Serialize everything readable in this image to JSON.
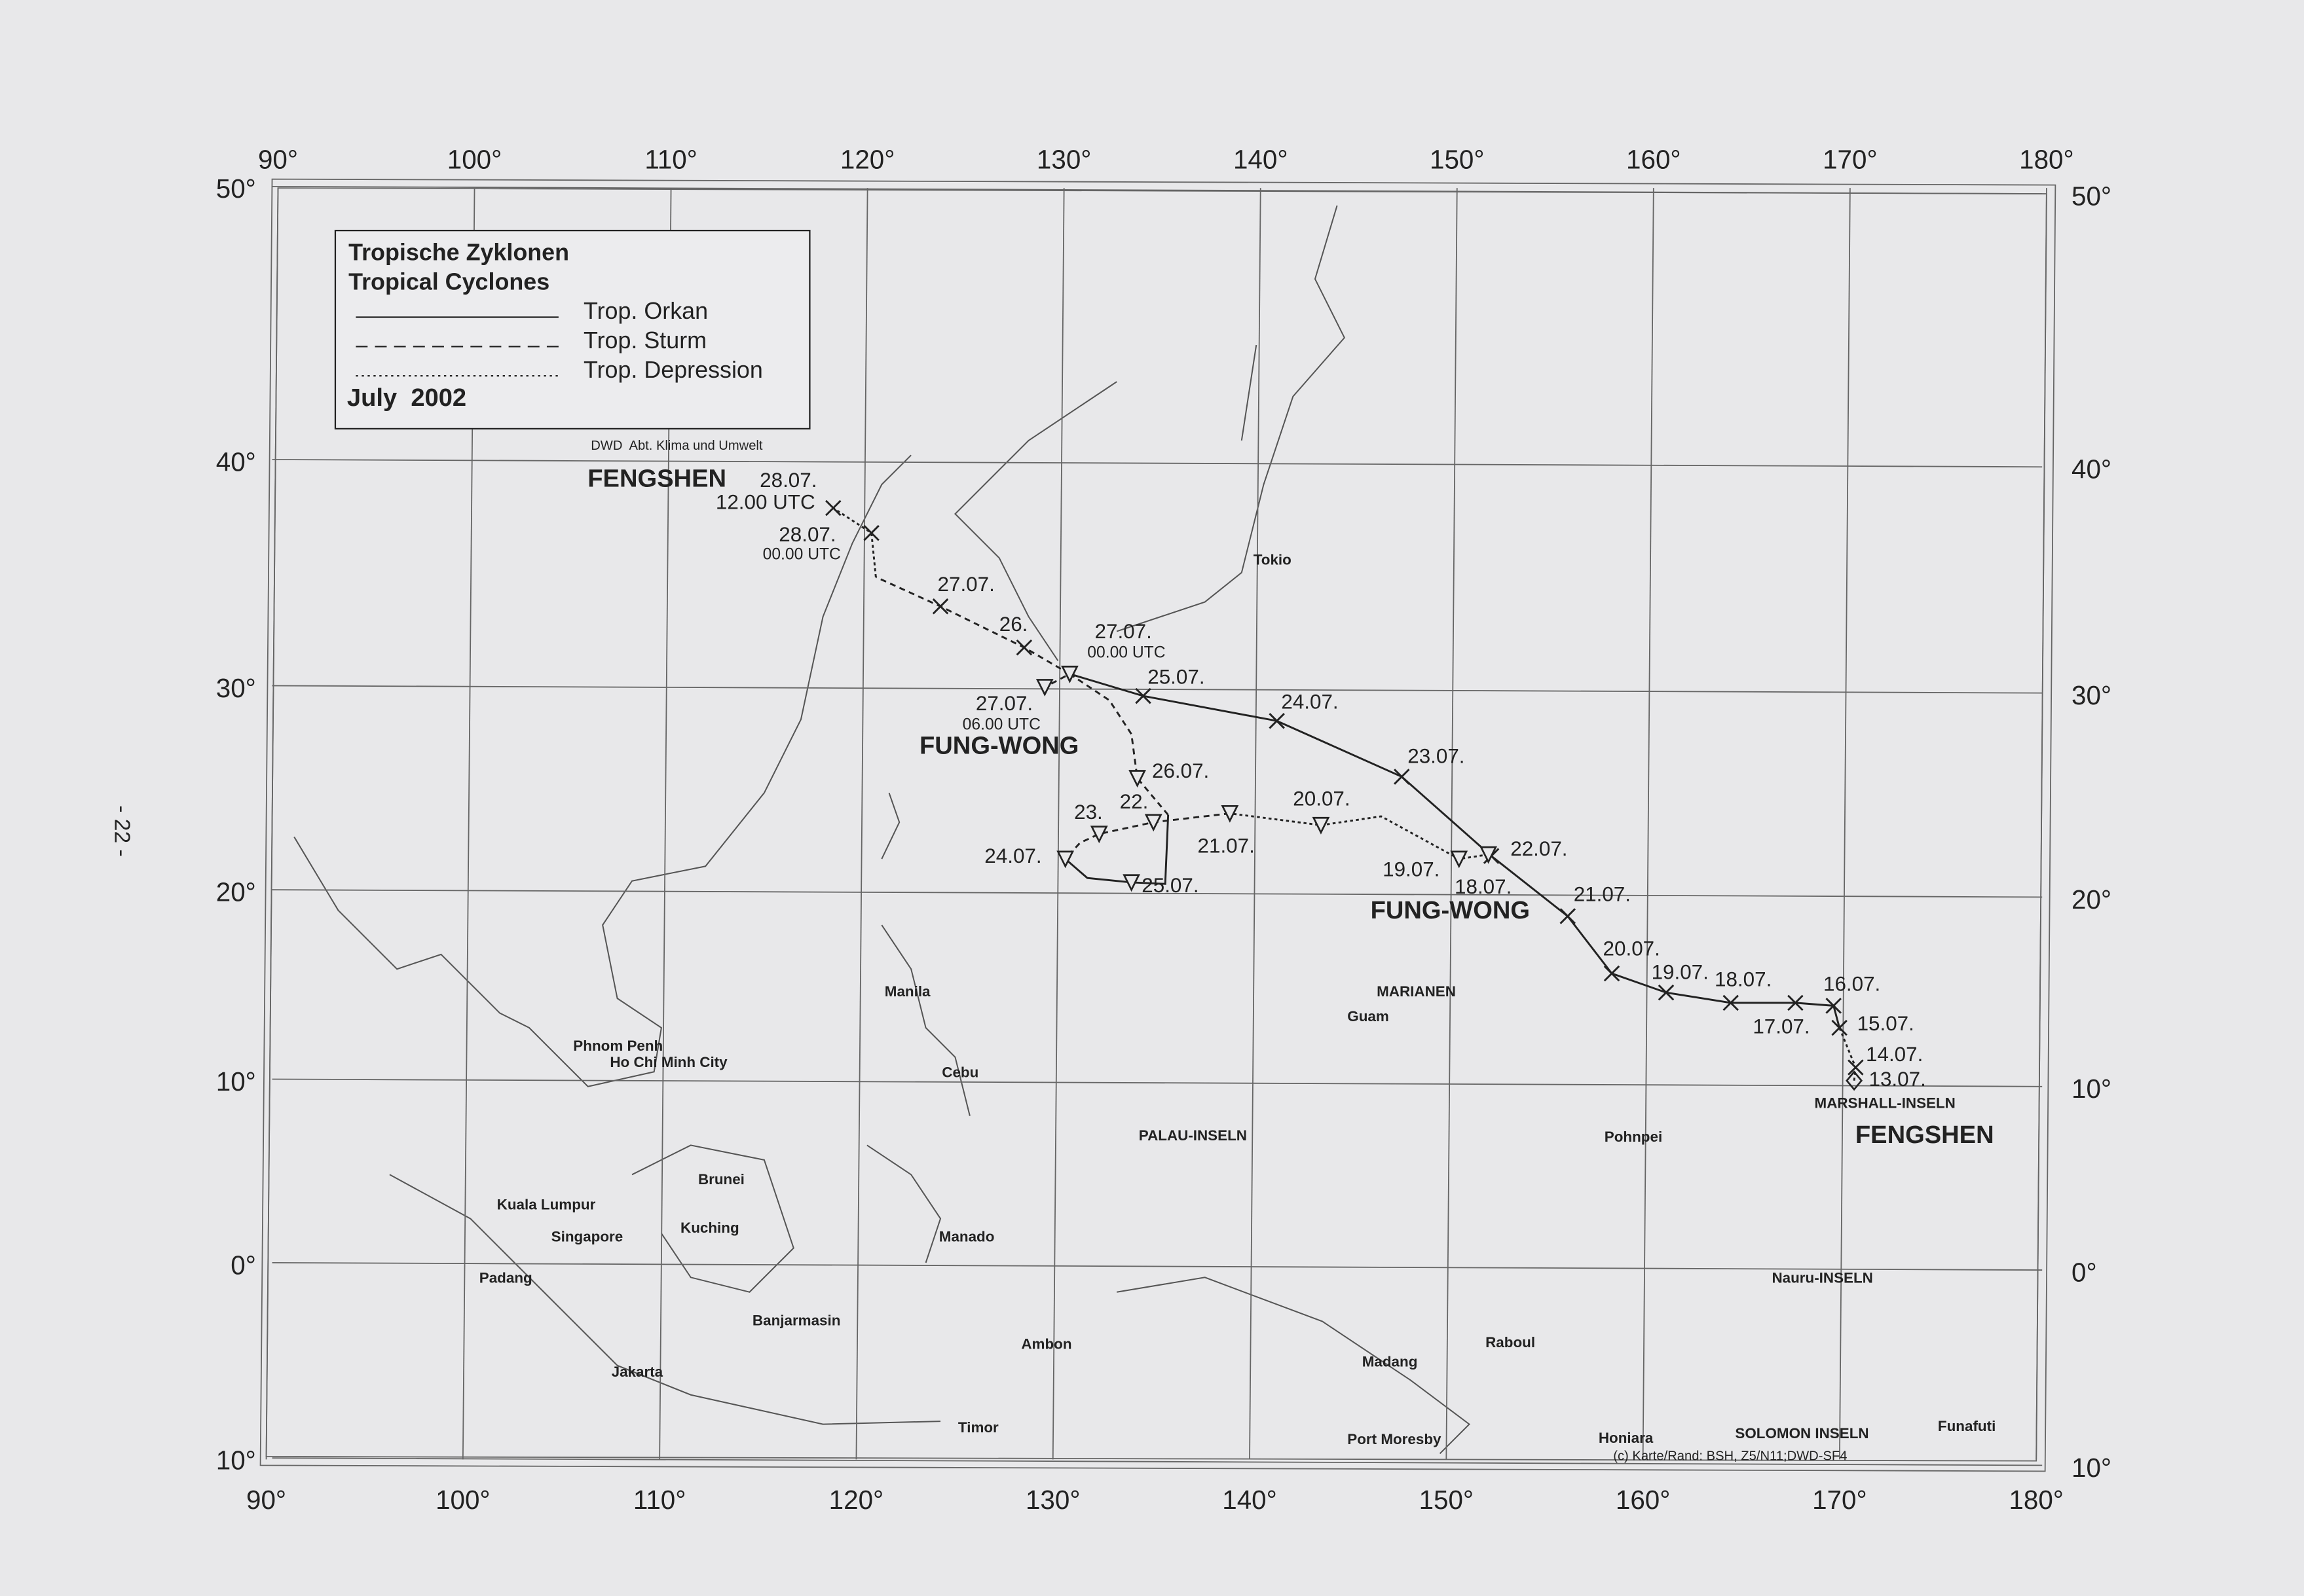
{
  "page_number": "- 22 -",
  "legend": {
    "title_de": "Tropische Zyklonen",
    "title_en": "Tropical Cyclones",
    "items": [
      "Trop. Orkan",
      "Trop. Sturm",
      "Trop. Depression"
    ],
    "period": "July  2002",
    "source": "DWD  Abt. Klima und Umwelt"
  },
  "axes": {
    "top": [
      "90°",
      "100°",
      "110°",
      "120°",
      "130°",
      "140°",
      "150°",
      "160°",
      "170°",
      "180°"
    ],
    "bottom": [
      "90°",
      "100°",
      "110°",
      "120°",
      "130°",
      "140°",
      "150°",
      "160°",
      "170°",
      "180°"
    ],
    "left": [
      "50°",
      "40°",
      "30°",
      "20°",
      "10°",
      "0°",
      "10°"
    ],
    "right": [
      "50°",
      "40°",
      "30°",
      "20°",
      "10°",
      "0°",
      "10°"
    ]
  },
  "storms": [
    {
      "name": "FENGSHEN",
      "labels": [
        "28.07.",
        "12.00 UTC",
        "28.07.",
        "00.00 UTC",
        "27.07.",
        "26.",
        "27.07.",
        "00.00 UTC",
        "25.07.",
        "24.07.",
        "23.07.",
        "22.07.",
        "21.07.",
        "20.07.",
        "19.07.",
        "18.07.",
        "16.07.",
        "17.07.",
        "15.07.",
        "14.07.",
        "13.07."
      ]
    },
    {
      "name": "FUNG-WONG",
      "labels": [
        "27.07.",
        "06.00 UTC",
        "26.07.",
        "23.",
        "22.",
        "21.07.",
        "20.07.",
        "19.07.",
        "18.07.",
        "24.07.",
        "25.07."
      ]
    }
  ],
  "places": [
    "Tokio",
    "MARIANEN",
    "Guam",
    "Manila",
    "Cebu",
    "Phnom Penh",
    "Ho Chi Minh City",
    "PALAU-INSELN",
    "Pohnpei",
    "MARSHALL-INSELN",
    "Brunei",
    "Kuala Lumpur",
    "Singapore",
    "Kuching",
    "Manado",
    "Padang",
    "Nauru-INSELN",
    "Banjarmasin",
    "Ambon",
    "Raboul",
    "Madang",
    "Jakarta",
    "Timor",
    "Port Moresby",
    "Honiara",
    "SOLOMON INSELN",
    "Funafuti"
  ],
  "credit": "(c) Karte/Rand: BSH, Z5/N11;DWD-SF4"
}
